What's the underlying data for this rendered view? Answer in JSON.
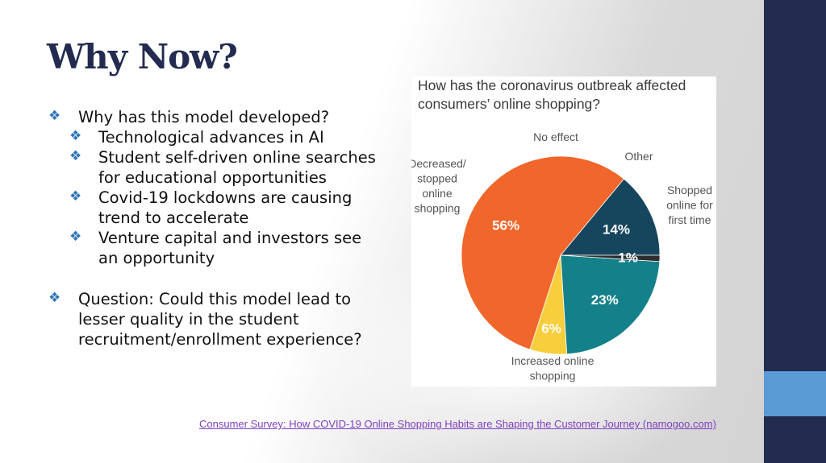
{
  "title": "Why Now?",
  "bullets": [
    {
      "level": 1,
      "text": "Why has this model developed?"
    },
    {
      "level": 2,
      "text": "Technological advances in AI"
    },
    {
      "level": 2,
      "text": "Student self-driven online searches for educational opportunities"
    },
    {
      "level": 2,
      "text": "Covid-19 lockdowns are causing trend to accelerate"
    },
    {
      "level": 2,
      "text": "Venture capital and investors see an opportunity"
    },
    {
      "level": 0,
      "text": ""
    },
    {
      "level": 1,
      "text": "Question: Could this model lead to lesser quality in the student recruitment/enrollment experience?"
    }
  ],
  "bullet_glyph": "❖",
  "chart_data": {
    "type": "pie",
    "title": "How has the coronavirus outbreak affected consumers’ online shopping?",
    "slices": [
      {
        "label": "Shopped online for first time",
        "value": 14,
        "value_label": "14%",
        "color": "#16465d"
      },
      {
        "label": "Increased online shopping",
        "value": 56,
        "value_label": "56%",
        "color": "#f0662b"
      },
      {
        "label": "Decreased/ stopped online shopping",
        "value": 6,
        "value_label": "6%",
        "color": "#f9ce3c"
      },
      {
        "label": "No effect",
        "value": 23,
        "value_label": "23%",
        "color": "#14818a"
      },
      {
        "label": "Other",
        "value": 1,
        "value_label": "1%",
        "color": "#2d2d2d"
      }
    ]
  },
  "source_link": "Consumer Survey: How COVID-19 Online Shopping Habits are Shaping the Customer Journey (namogoo.com)",
  "colors": {
    "navy": "#232b50",
    "accent_blue": "#5b9bd5",
    "bullet_blue": "#2e75b6",
    "link": "#7f3fbf"
  }
}
